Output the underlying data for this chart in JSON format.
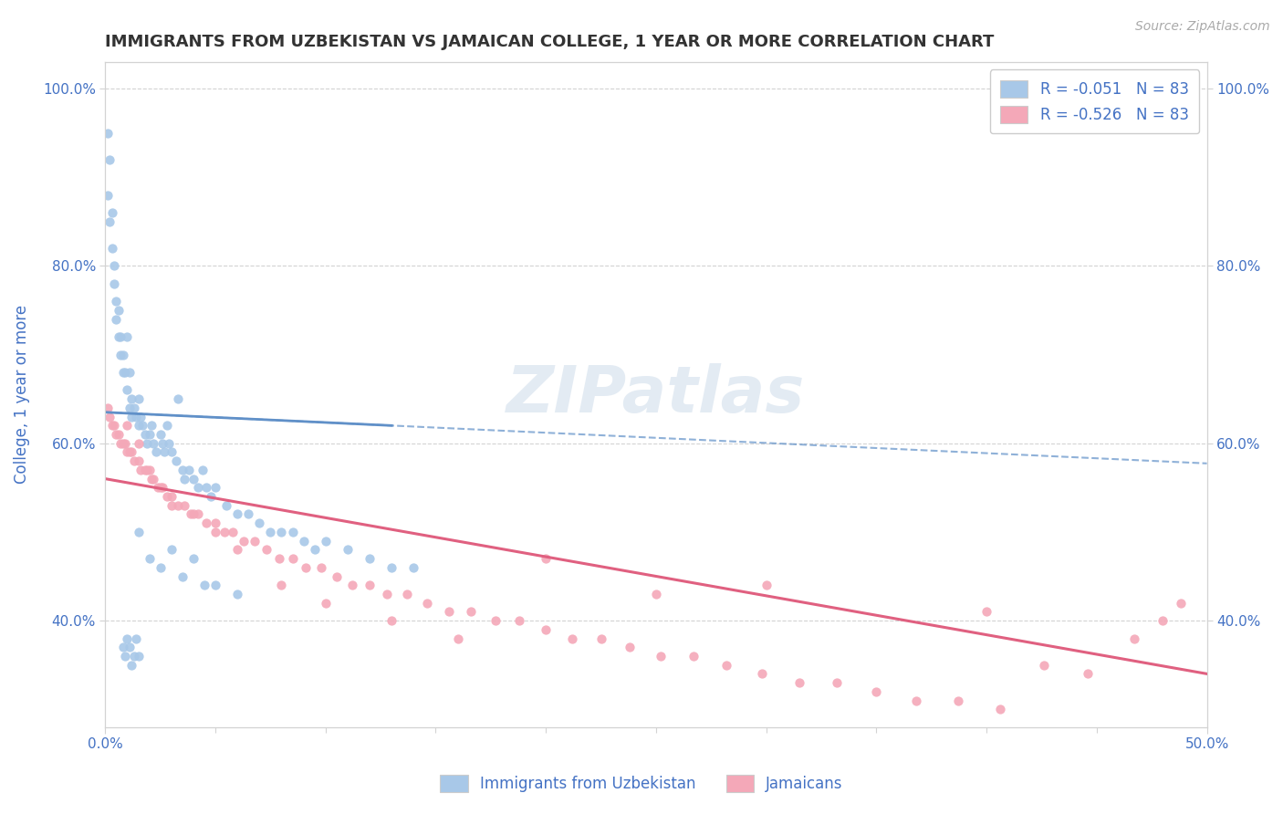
{
  "title": "IMMIGRANTS FROM UZBEKISTAN VS JAMAICAN COLLEGE, 1 YEAR OR MORE CORRELATION CHART",
  "source_text": "Source: ZipAtlas.com",
  "ylabel_left": "College, 1 year or more",
  "legend_label_1": "Immigrants from Uzbekistan",
  "legend_label_2": "Jamaicans",
  "R1": -0.051,
  "N1": 83,
  "R2": -0.526,
  "N2": 83,
  "color_blue": "#a8c8e8",
  "color_pink": "#f4a8b8",
  "color_blue_line": "#6090c8",
  "color_pink_line": "#e06080",
  "color_text": "#4472c4",
  "xmin": 0.0,
  "xmax": 0.5,
  "ymin": 0.28,
  "ymax": 1.03,
  "blue_x": [
    0.001,
    0.001,
    0.002,
    0.002,
    0.003,
    0.003,
    0.004,
    0.004,
    0.005,
    0.005,
    0.006,
    0.006,
    0.007,
    0.007,
    0.008,
    0.008,
    0.009,
    0.01,
    0.01,
    0.011,
    0.011,
    0.012,
    0.012,
    0.013,
    0.014,
    0.015,
    0.015,
    0.016,
    0.017,
    0.018,
    0.019,
    0.02,
    0.021,
    0.022,
    0.023,
    0.025,
    0.026,
    0.027,
    0.028,
    0.029,
    0.03,
    0.032,
    0.033,
    0.035,
    0.036,
    0.038,
    0.04,
    0.042,
    0.044,
    0.046,
    0.048,
    0.05,
    0.055,
    0.06,
    0.065,
    0.07,
    0.075,
    0.08,
    0.085,
    0.09,
    0.095,
    0.1,
    0.11,
    0.12,
    0.13,
    0.14,
    0.008,
    0.009,
    0.01,
    0.011,
    0.012,
    0.013,
    0.014,
    0.015,
    0.02,
    0.025,
    0.03,
    0.035,
    0.04,
    0.045,
    0.05,
    0.06,
    0.015
  ],
  "blue_y": [
    0.95,
    0.88,
    0.92,
    0.85,
    0.86,
    0.82,
    0.8,
    0.78,
    0.76,
    0.74,
    0.75,
    0.72,
    0.72,
    0.7,
    0.7,
    0.68,
    0.68,
    0.66,
    0.72,
    0.64,
    0.68,
    0.65,
    0.63,
    0.64,
    0.63,
    0.62,
    0.65,
    0.63,
    0.62,
    0.61,
    0.6,
    0.61,
    0.62,
    0.6,
    0.59,
    0.61,
    0.6,
    0.59,
    0.62,
    0.6,
    0.59,
    0.58,
    0.65,
    0.57,
    0.56,
    0.57,
    0.56,
    0.55,
    0.57,
    0.55,
    0.54,
    0.55,
    0.53,
    0.52,
    0.52,
    0.51,
    0.5,
    0.5,
    0.5,
    0.49,
    0.48,
    0.49,
    0.48,
    0.47,
    0.46,
    0.46,
    0.37,
    0.36,
    0.38,
    0.37,
    0.35,
    0.36,
    0.38,
    0.36,
    0.47,
    0.46,
    0.48,
    0.45,
    0.47,
    0.44,
    0.44,
    0.43,
    0.5
  ],
  "pink_x": [
    0.001,
    0.002,
    0.003,
    0.004,
    0.005,
    0.006,
    0.007,
    0.008,
    0.009,
    0.01,
    0.011,
    0.012,
    0.013,
    0.015,
    0.016,
    0.018,
    0.019,
    0.021,
    0.022,
    0.024,
    0.026,
    0.028,
    0.03,
    0.033,
    0.036,
    0.039,
    0.042,
    0.046,
    0.05,
    0.054,
    0.058,
    0.063,
    0.068,
    0.073,
    0.079,
    0.085,
    0.091,
    0.098,
    0.105,
    0.112,
    0.12,
    0.128,
    0.137,
    0.146,
    0.156,
    0.166,
    0.177,
    0.188,
    0.2,
    0.212,
    0.225,
    0.238,
    0.252,
    0.267,
    0.282,
    0.298,
    0.315,
    0.332,
    0.35,
    0.368,
    0.387,
    0.406,
    0.426,
    0.446,
    0.467,
    0.488,
    0.01,
    0.015,
    0.02,
    0.025,
    0.03,
    0.04,
    0.05,
    0.06,
    0.08,
    0.1,
    0.13,
    0.16,
    0.2,
    0.25,
    0.3,
    0.4,
    0.48
  ],
  "pink_y": [
    0.64,
    0.63,
    0.62,
    0.62,
    0.61,
    0.61,
    0.6,
    0.6,
    0.6,
    0.59,
    0.59,
    0.59,
    0.58,
    0.58,
    0.57,
    0.57,
    0.57,
    0.56,
    0.56,
    0.55,
    0.55,
    0.54,
    0.54,
    0.53,
    0.53,
    0.52,
    0.52,
    0.51,
    0.51,
    0.5,
    0.5,
    0.49,
    0.49,
    0.48,
    0.47,
    0.47,
    0.46,
    0.46,
    0.45,
    0.44,
    0.44,
    0.43,
    0.43,
    0.42,
    0.41,
    0.41,
    0.4,
    0.4,
    0.39,
    0.38,
    0.38,
    0.37,
    0.36,
    0.36,
    0.35,
    0.34,
    0.33,
    0.33,
    0.32,
    0.31,
    0.31,
    0.3,
    0.35,
    0.34,
    0.38,
    0.42,
    0.62,
    0.6,
    0.57,
    0.55,
    0.53,
    0.52,
    0.5,
    0.48,
    0.44,
    0.42,
    0.4,
    0.38,
    0.47,
    0.43,
    0.44,
    0.41,
    0.4
  ]
}
